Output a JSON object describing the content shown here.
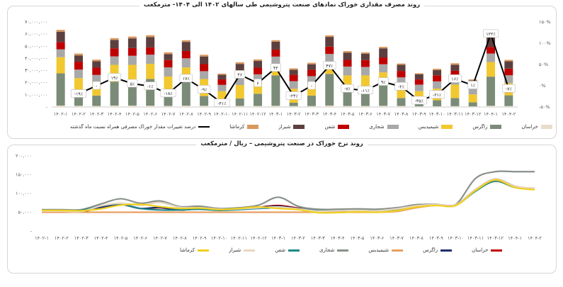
{
  "chart_data": [
    {
      "type": "bar",
      "title": "روند مصرف مقداری خوراک نمادهای صنعت پتروشیمی طی سالهای ۱۴۰۲ الی ۱۴۰۴- مترمکعب",
      "categories": [
        "۱۴۰۲-۱",
        "۱۴۰۲-۲",
        "۱۴۰۲-۳",
        "۱۴۰۲-۴",
        "۱۴۰۲-۵",
        "۱۴۰۲-۶",
        "۱۴۰۲-۷",
        "۱۴۰۲-۸",
        "۱۴۰۲-۹",
        "۱۴۰۲-۱۰",
        "۱۴۰۲-۱۱",
        "۱۴۰۲-۱۲",
        "۱۴۰۳-۱",
        "۱۴۰۳-۲",
        "۱۴۰۳-۳",
        "۱۴۰۳-۴",
        "۱۴۰۳-۵",
        "۱۴۰۳-۶",
        "۱۴۰۳-۷",
        "۱۴۰۳-۸",
        "۱۴۰۳-۹",
        "۱۴۰۳-۱۰",
        "۱۴۰۳-۱۱",
        "۱۴۰۳-۱۲",
        "۱۴۰۴-۱",
        "۱۴۰۴-۲"
      ],
      "y_left_ticks": [
        "-",
        "۱۰,۰۰۰,۰۰۰",
        "۲۰,۰۰۰,۰۰۰",
        "۳۰,۰۰۰,۰۰۰",
        "۴۰,۰۰۰,۰۰۰",
        "۵۰,۰۰۰,۰۰۰",
        "۶۰,۰۰۰,۰۰۰",
        "۷۰,۰۰۰,۰۰۰"
      ],
      "y_right_ticks": [
        "-۵۰%",
        "۰%",
        "۵۰%",
        "۱۰۰%",
        "۱۵۰%"
      ],
      "ylim": [
        0,
        70000000
      ],
      "y2lim": [
        -50,
        150
      ],
      "series": [
        {
          "name": "خراسان",
          "color": "#e8dccb",
          "values": [
            1.2,
            1.0,
            0.9,
            1.2,
            1.2,
            1.1,
            0.9,
            1.1,
            1.0,
            0.6,
            0.9,
            0.9,
            1.0,
            0.8,
            0.8,
            1.2,
            0.9,
            0.9,
            1.0,
            0.9,
            0.6,
            0.6,
            0.7,
            0.5,
            1.0,
            0.8
          ]
        },
        {
          "name": "زاگرس",
          "color": "#7a8c77",
          "values": [
            26.5,
            8.3,
            8.5,
            19.5,
            21.0,
            22.0,
            9.0,
            20.5,
            8.0,
            3.6,
            6.2,
            10.0,
            25.0,
            2.7,
            8.6,
            26.0,
            14.6,
            13.1,
            18.5,
            6.5,
            3.1,
            5.0,
            6.7,
            3.4,
            24.0,
            8.8
          ]
        },
        {
          "name": "شیمیدیس",
          "color": "#f2c830",
          "values": [
            13.3,
            14.5,
            10.5,
            14.0,
            12.5,
            12.5,
            15.2,
            11.0,
            14.0,
            8.8,
            11.0,
            9.5,
            8.5,
            11.5,
            10.0,
            8.5,
            10.5,
            12.0,
            9.0,
            10.5,
            9.3,
            9.5,
            11.0,
            6.5,
            12.0,
            10.0
          ]
        },
        {
          "name": "شجاری",
          "color": "#a8a8a8",
          "values": [
            6.5,
            7.0,
            6.5,
            7.0,
            7.5,
            7.5,
            7.5,
            7.5,
            6.5,
            5.2,
            6.8,
            6.5,
            7.0,
            6.3,
            6.0,
            8.0,
            7.3,
            7.0,
            6.7,
            6.5,
            5.4,
            6.0,
            6.0,
            5.4,
            7.0,
            6.5
          ]
        },
        {
          "name": "شفن",
          "color": "#c00000",
          "values": [
            6.0,
            6.5,
            6.0,
            6.5,
            6.3,
            6.0,
            6.0,
            6.0,
            5.8,
            4.6,
            5.4,
            5.5,
            5.8,
            5.3,
            5.3,
            6.0,
            5.5,
            5.6,
            5.6,
            5.3,
            4.3,
            5.0,
            5.4,
            3.6,
            5.5,
            5.5
          ]
        },
        {
          "name": "شیراز",
          "color": "#5c4040",
          "values": [
            8.5,
            5.2,
            5.3,
            7.0,
            8.0,
            8.5,
            5.0,
            7.5,
            6.3,
            3.7,
            5.2,
            5.5,
            6.5,
            4.0,
            4.5,
            8.0,
            6.0,
            5.3,
            7.5,
            5.0,
            4.3,
            4.3,
            5.0,
            2.5,
            9.0,
            6.0
          ]
        },
        {
          "name": "کرماشا",
          "color": "#d9985e",
          "values": [
            1.5,
            1.5,
            1.3,
            1.5,
            1.5,
            1.5,
            1.4,
            1.4,
            1.4,
            1.0,
            1.3,
            1.3,
            1.2,
            1.2,
            1.2,
            1.3,
            1.2,
            1.1,
            1.2,
            1.1,
            0.8,
            1.1,
            1.2,
            0.8,
            1.2,
            1.2
          ]
        }
      ],
      "values_unit": "millions",
      "line": {
        "name": "درصد تغییرات مقدار خوراک مصرفی همراه نسبت ماه گذشته",
        "color": "#000000",
        "axis": "right",
        "values": [
          null,
          -19,
          0,
          19,
          5,
          -1,
          -18,
          17,
          -9,
          -41,
          26,
          6,
          42,
          -24,
          0,
          47,
          -7,
          -11,
          9,
          -2,
          -35,
          -21,
          16,
          1,
          122,
          -7
        ],
        "labels": [
          "",
          "-۱۹٪",
          "-",
          "۱۹٪",
          "۵٪",
          "-۱٪",
          "-۱۸٪",
          "۱۷٪",
          "-۹٪",
          "-۴۱٪",
          "۲۶",
          "۶",
          "۴۲",
          "-۲۴٪",
          "-",
          "۴۷٪",
          "-۷٪",
          "-۱۱٪",
          "۹٪",
          "-۲٪",
          "-۳۵٪",
          "-۲۱٪",
          "۱۶٪",
          "۱٪",
          "۱۲۲٪",
          "-۷٪"
        ]
      }
    },
    {
      "type": "line",
      "title": "روند نرخ خوراک در صنعت پتروشیمی – ریال / مترمکعب",
      "categories": [
        "۱۴۰۲-۱",
        "۱۴۰۲-۲",
        "۱۴۰۲-۳",
        "۱۴۰۲-۴",
        "۱۴۰۲-۵",
        "۱۴۰۲-۶",
        "۱۴۰۲-۷",
        "۱۴۰۲-۸",
        "۱۴۰۲-۹",
        "۱۴۰۲-۱۰",
        "۱۴۰۲-۱۱",
        "۱۴۰۲-۱۲",
        "۱۴۰۳-۱",
        "۱۴۰۳-۲",
        "۱۴۰۳-۳",
        "۱۴۰۳-۴",
        "۱۴۰۳-۵",
        "۱۴۰۳-۶",
        "۱۴۰۳-۷",
        "۱۴۰۳-۸",
        "۱۴۰۳-۹",
        "۱۴۰۳-۱۰",
        "۱۴۰۳-۱۱",
        "۱۴۰۳-۱۲",
        "۱۴۰۴-۱",
        "۱۴۰۴-۲"
      ],
      "y_ticks": [
        "-",
        "۵۰,۰۰۰",
        "۱۰۰,۰۰۰",
        "۱۵۰,۰۰۰",
        "۲۰۰,۰۰۰"
      ],
      "ylim": [
        0,
        200000
      ],
      "series": [
        {
          "name": "خراسان",
          "color": "#c00000",
          "values": [
            52,
            52,
            51,
            63,
            71,
            60,
            62,
            56,
            60,
            58,
            58,
            63,
            68,
            61,
            55,
            56,
            57,
            56,
            60,
            67,
            70,
            70,
            110,
            138,
            119,
            113
          ]
        },
        {
          "name": "زاگرس",
          "color": "#1f2d6b",
          "values": [
            52,
            52,
            51,
            63,
            71,
            60,
            63,
            56,
            60,
            58,
            58,
            63,
            66,
            60,
            54,
            55,
            56,
            55,
            58,
            66,
            70,
            70,
            110,
            138,
            119,
            112
          ]
        },
        {
          "name": "شیمیدیس",
          "color": "#e8a060",
          "values": [
            50,
            50,
            50,
            50,
            50,
            50,
            50,
            50,
            50,
            50,
            50,
            50,
            50,
            50,
            50,
            50,
            50,
            50,
            52,
            62,
            68,
            68,
            108,
            132,
            117,
            114
          ]
        },
        {
          "name": "شجاری",
          "color": "#8a918a",
          "values": [
            57,
            57,
            57,
            72,
            86,
            74,
            80,
            65,
            66,
            60,
            62,
            69,
            90,
            66,
            58,
            58,
            59,
            58,
            62,
            70,
            71,
            71,
            140,
            158,
            158,
            158
          ]
        },
        {
          "name": "شفن",
          "color": "#1f8a8a",
          "values": [
            55,
            55,
            55,
            67,
            72,
            60,
            56,
            56,
            58,
            55,
            57,
            60,
            62,
            59,
            54,
            54,
            55,
            54,
            58,
            65,
            69,
            69,
            106,
            133,
            116,
            114
          ]
        },
        {
          "name": "شیراز",
          "color": "#e8d8c0",
          "values": [
            53,
            53,
            52,
            67,
            74,
            68,
            76,
            63,
            62,
            58,
            59,
            62,
            64,
            59,
            53,
            54,
            55,
            54,
            59,
            67,
            70,
            70,
            110,
            138,
            119,
            114
          ]
        },
        {
          "name": "کرماشا",
          "color": "#f0d020",
          "values": [
            55,
            55,
            54,
            59,
            69,
            71,
            65,
            60,
            61,
            57,
            60,
            64,
            60,
            57,
            49,
            49,
            51,
            50,
            54,
            64,
            68,
            68,
            108,
            136,
            116,
            110
          ]
        }
      ],
      "values_unit": "thousands"
    }
  ]
}
